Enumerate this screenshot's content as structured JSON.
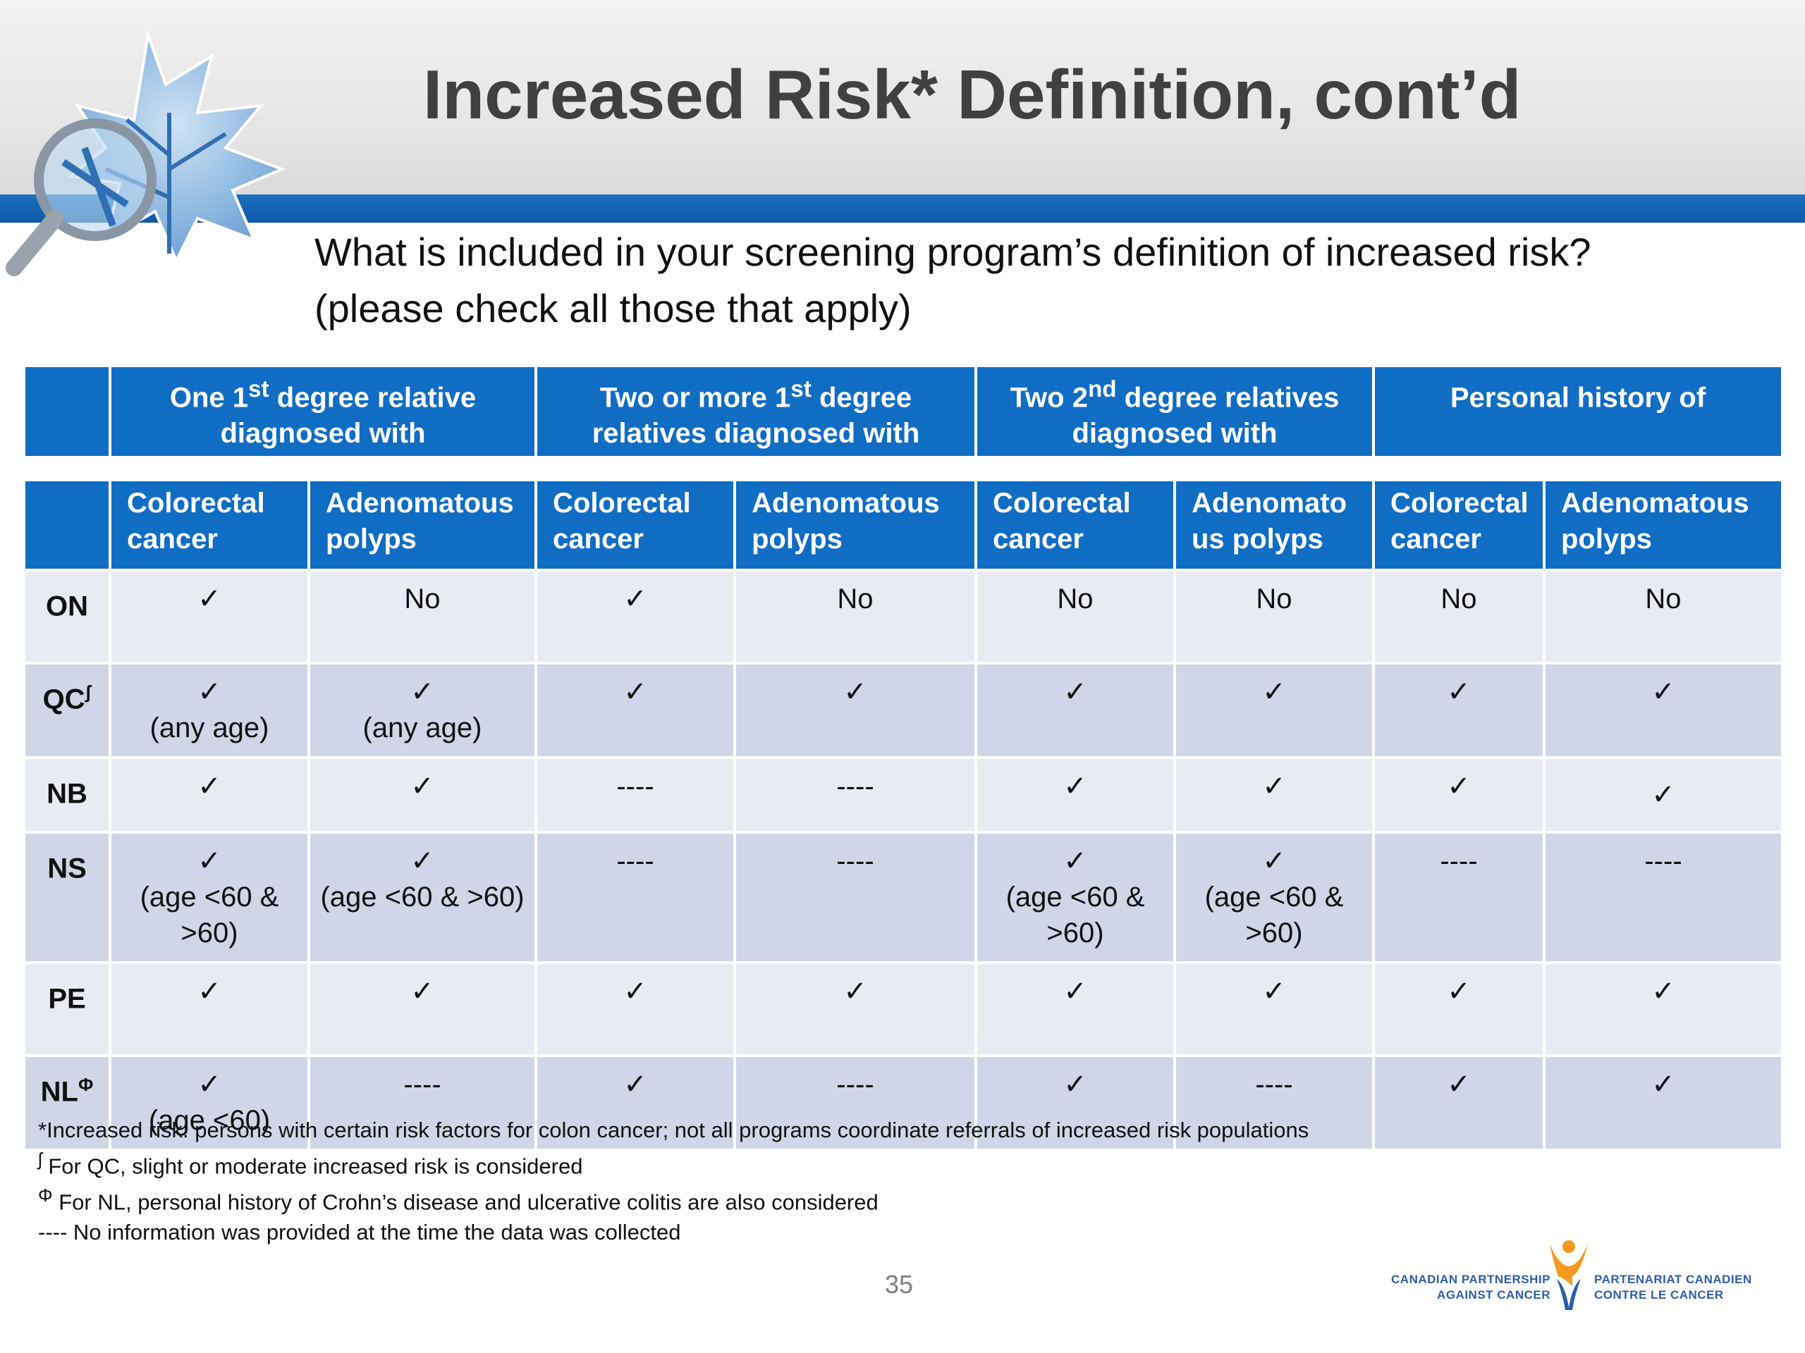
{
  "slide": {
    "title": "Increased Risk* Definition, cont’d",
    "question_line1": "What is included in your screening program’s definition of increased risk?",
    "question_line2": "(please check all those that apply)",
    "page_number": "35"
  },
  "table": {
    "group_headers": [
      {
        "pre": "One 1",
        "sup": "st",
        "post": " degree relative diagnosed  with"
      },
      {
        "pre": "Two or more 1",
        "sup": "st",
        "post": " degree relatives diagnosed with"
      },
      {
        "pre": "Two 2",
        "sup": "nd",
        "post": " degree relatives diagnosed with"
      },
      {
        "pre": "Personal history of",
        "sup": "",
        "post": ""
      }
    ],
    "sub_headers": [
      "Colorectal cancer",
      "Adenomatous polyps",
      "Colorectal cancer",
      "Adenomatous polyps",
      "Colorectal cancer",
      "Adenomato us polyps",
      "Colorectal cancer",
      "Adenomatous polyps"
    ],
    "rows": [
      {
        "prov": "ON",
        "mark": "",
        "cells": [
          {
            "v": "✓",
            "n": ""
          },
          {
            "v": "No",
            "n": ""
          },
          {
            "v": "✓",
            "n": ""
          },
          {
            "v": "No",
            "n": ""
          },
          {
            "v": "No",
            "n": ""
          },
          {
            "v": "No",
            "n": ""
          },
          {
            "v": "No",
            "n": ""
          },
          {
            "v": "No",
            "n": ""
          }
        ]
      },
      {
        "prov": "QC",
        "mark": "ʃ",
        "cells": [
          {
            "v": "✓",
            "n": "(any age)"
          },
          {
            "v": "✓",
            "n": "(any age)"
          },
          {
            "v": "✓",
            "n": ""
          },
          {
            "v": "✓",
            "n": ""
          },
          {
            "v": "✓",
            "n": ""
          },
          {
            "v": "✓",
            "n": ""
          },
          {
            "v": "✓",
            "n": ""
          },
          {
            "v": "✓",
            "n": ""
          }
        ]
      },
      {
        "prov": "NB",
        "mark": "",
        "cells": [
          {
            "v": "✓",
            "n": ""
          },
          {
            "v": "✓",
            "n": ""
          },
          {
            "v": "----",
            "n": ""
          },
          {
            "v": "----",
            "n": ""
          },
          {
            "v": "✓",
            "n": ""
          },
          {
            "v": "✓",
            "n": ""
          },
          {
            "v": "✓",
            "n": ""
          },
          {
            "v": "✓",
            "n": ""
          }
        ]
      },
      {
        "prov": "NS",
        "mark": "",
        "cells": [
          {
            "v": "✓",
            "n": "(age <60 & >60)"
          },
          {
            "v": "✓",
            "n": "(age <60 & >60)"
          },
          {
            "v": "----",
            "n": ""
          },
          {
            "v": "----",
            "n": ""
          },
          {
            "v": "✓",
            "n": "(age <60 & >60)"
          },
          {
            "v": "✓",
            "n": "(age <60 & >60)"
          },
          {
            "v": "----",
            "n": ""
          },
          {
            "v": "----",
            "n": ""
          }
        ]
      },
      {
        "prov": "PE",
        "mark": "",
        "cells": [
          {
            "v": "✓",
            "n": ""
          },
          {
            "v": "✓",
            "n": ""
          },
          {
            "v": "✓",
            "n": ""
          },
          {
            "v": "✓",
            "n": ""
          },
          {
            "v": "✓",
            "n": ""
          },
          {
            "v": "✓",
            "n": ""
          },
          {
            "v": "✓",
            "n": ""
          },
          {
            "v": "✓",
            "n": ""
          }
        ]
      },
      {
        "prov": "NL",
        "mark": "Φ",
        "cells": [
          {
            "v": "✓",
            "n": "(age <60)"
          },
          {
            "v": "----",
            "n": ""
          },
          {
            "v": "✓",
            "n": ""
          },
          {
            "v": "----",
            "n": ""
          },
          {
            "v": "✓",
            "n": ""
          },
          {
            "v": "----",
            "n": ""
          },
          {
            "v": "✓",
            "n": ""
          },
          {
            "v": "✓",
            "n": ""
          }
        ]
      }
    ]
  },
  "footnotes": [
    {
      "mark": "",
      "text": "*Increased risk: persons with certain risk factors for colon cancer; not all programs coordinate referrals of increased risk populations"
    },
    {
      "mark": "ʃ",
      "text": " For QC, slight or moderate increased risk is considered"
    },
    {
      "mark": "Φ",
      "text": " For NL, personal history of Crohn’s disease and ulcerative colitis are also considered"
    },
    {
      "mark": "",
      "text": "---- No information was provided at the time the data was collected"
    }
  ],
  "logo": {
    "en_line1": "CANADIAN PARTNERSHIP",
    "en_line2": "AGAINST CANCER",
    "fr_line1": "PARTENARIAT CANADIEN",
    "fr_line2": "CONTRE LE CANCER"
  },
  "colors": {
    "header_blue": "#0f6dc4",
    "row_light": "#e9ebf4",
    "row_dark": "#d0d6e8",
    "title_gray": "#404040"
  }
}
